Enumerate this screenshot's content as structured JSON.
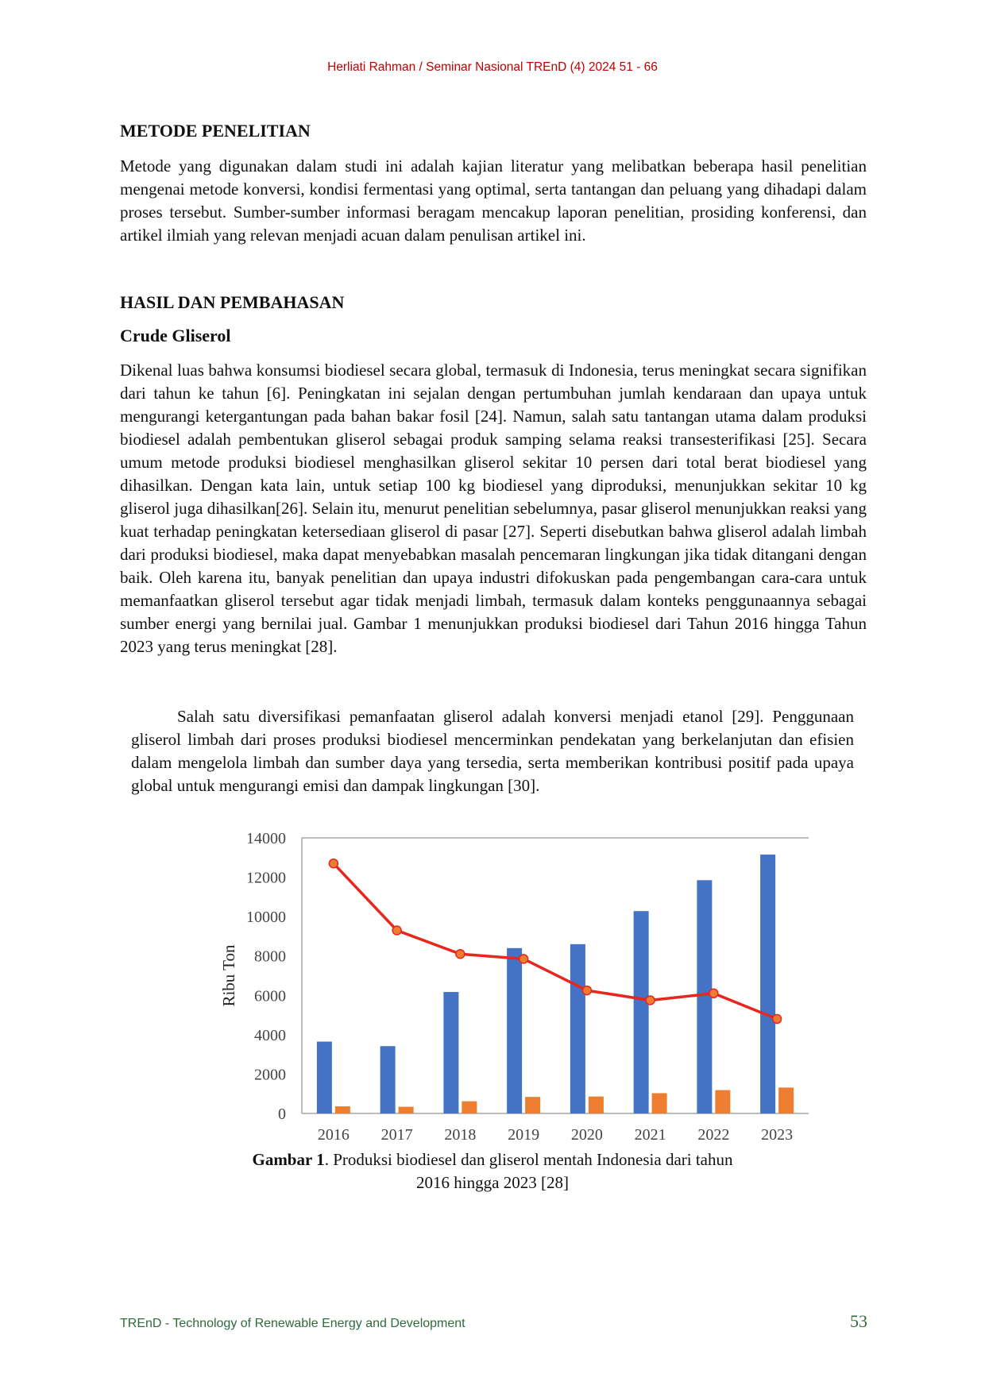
{
  "header": {
    "running": "Herliati Rahman / Seminar Nasional TREnD (4) 2024 51 - 66"
  },
  "sections": {
    "metode_title": "METODE PENELITIAN",
    "metode_text": "Metode yang digunakan dalam studi ini adalah kajian literatur yang melibatkan beberapa hasil penelitian mengenai metode konversi, kondisi fermentasi yang optimal, serta tantangan dan peluang yang dihadapi dalam proses tersebut. Sumber-sumber informasi beragam mencakup laporan penelitian, prosiding konferensi, dan artikel ilmiah yang relevan menjadi acuan dalam penulisan artikel ini.",
    "hasil_title": "HASIL DAN PEMBAHASAN",
    "crude_title": "Crude Gliserol",
    "crude_p1": "Dikenal luas bahwa konsumsi biodiesel secara global, termasuk di Indonesia, terus meningkat secara signifikan dari tahun ke tahun [6]. Peningkatan ini sejalan dengan pertumbuhan jumlah kendaraan dan upaya untuk mengurangi ketergantungan pada bahan bakar fosil [24]. Namun, salah satu tantangan utama dalam produksi biodiesel adalah pembentukan gliserol sebagai produk samping selama reaksi transesterifikasi [25]. Secara umum metode produksi biodiesel menghasilkan gliserol sekitar 10 persen dari total berat biodiesel yang dihasilkan. Dengan kata lain, untuk setiap 100 kg biodiesel yang diproduksi, menunjukkan sekitar 10 kg gliserol juga dihasilkan[26]. Selain itu, menurut penelitian sebelumnya, pasar gliserol menunjukkan reaksi yang kuat terhadap peningkatan ketersediaan gliserol di pasar [27]. Seperti disebutkan bahwa gliserol adalah limbah dari produksi biodiesel, maka dapat menyebabkan masalah pencemaran lingkungan jika tidak ditangani dengan baik. Oleh karena itu, banyak penelitian dan upaya industri difokuskan pada pengembangan cara-cara untuk memanfaatkan gliserol tersebut agar tidak menjadi limbah, termasuk dalam konteks penggunaannya sebagai sumber energi yang bernilai jual. Gambar 1 menunjukkan produksi biodiesel dari Tahun 2016 hingga Tahun 2023 yang terus meningkat [28].",
    "crude_p2": "Salah satu diversifikasi pemanfaatan gliserol adalah konversi menjadi etanol [29]. Penggunaan gliserol limbah dari proses produksi biodiesel mencerminkan pendekatan yang berkelanjutan dan efisien dalam mengelola limbah dan sumber daya yang tersedia, serta memberikan kontribusi positif pada upaya global untuk mengurangi emisi dan dampak lingkungan [30]."
  },
  "figure": {
    "caption_label": "Gambar 1",
    "caption_text": ". Produksi biodiesel dan gliserol mentah Indonesia dari tahun 2016 hingga 2023 [28]"
  },
  "chart_data": {
    "type": "bar",
    "categories": [
      "2016",
      "2017",
      "2018",
      "2019",
      "2020",
      "2021",
      "2022",
      "2023"
    ],
    "ylabel": "Ribu Ton",
    "xlabel": "",
    "ylim": [
      0,
      14000
    ],
    "yticks": [
      0,
      2000,
      4000,
      6000,
      8000,
      10000,
      12000,
      14000
    ],
    "grid": false,
    "legend": "none",
    "series": [
      {
        "type": "bar",
        "color": "#4472c4",
        "values": [
          3650,
          3420,
          6170,
          8400,
          8600,
          10280,
          11850,
          13150
        ]
      },
      {
        "type": "bar",
        "color": "#ed7d31",
        "values": [
          360,
          340,
          620,
          840,
          860,
          1030,
          1185,
          1315
        ]
      },
      {
        "type": "line",
        "color": "#e8261e",
        "values": [
          12700,
          9300,
          8100,
          7850,
          6250,
          5750,
          6100,
          4800
        ]
      }
    ]
  },
  "footer": {
    "journal": "TREnD - Technology of Renewable Energy and Development",
    "page_number": "53"
  }
}
